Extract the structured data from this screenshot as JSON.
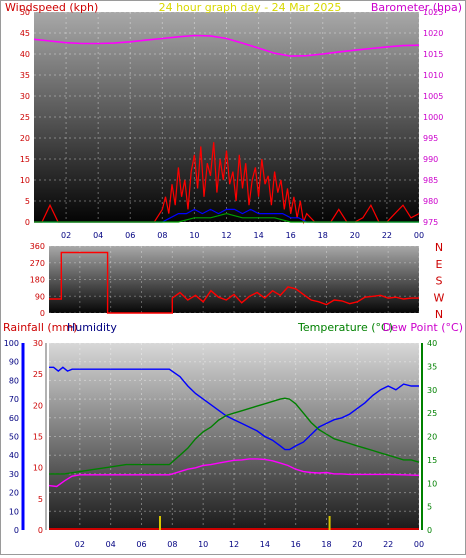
{
  "chart_data": [
    {
      "type": "line",
      "title": "24 hour graph day - 24 Mar 2025",
      "left_axis_label": "Windspeed (kph)",
      "right_axis_label": "Barometer (hpa)",
      "x_ticks": [
        "02",
        "04",
        "06",
        "08",
        "10",
        "12",
        "14",
        "16",
        "18",
        "20",
        "22",
        "00"
      ],
      "y_left_ticks": [
        "0",
        "5",
        "10",
        "15",
        "20",
        "25",
        "30",
        "35",
        "40",
        "45",
        "50"
      ],
      "y_left_range": [
        0,
        50
      ],
      "y_right_ticks": [
        "975",
        "980",
        "985",
        "990",
        "995",
        "1000",
        "1005",
        "1010",
        "1015",
        "1020",
        "1025"
      ],
      "y_right_range": [
        975,
        1025
      ],
      "series": [
        {
          "name": "Barometer",
          "color": "#ff00ff",
          "axis": "right",
          "x": [
            0,
            1,
            2,
            3,
            4,
            5,
            6,
            7,
            8,
            9,
            10,
            11,
            12,
            13,
            14,
            15,
            16,
            17,
            18,
            19,
            20,
            21,
            22,
            23,
            24
          ],
          "values": [
            1018.5,
            1018.1,
            1017.7,
            1017.5,
            1017.5,
            1017.6,
            1017.9,
            1018.3,
            1018.7,
            1019.1,
            1019.4,
            1019.3,
            1018.7,
            1017.6,
            1016.4,
            1015.2,
            1014.5,
            1014.6,
            1015.0,
            1015.5,
            1015.9,
            1016.3,
            1016.7,
            1017.0,
            1017.1
          ]
        },
        {
          "name": "Wind gust",
          "color": "#ff0000",
          "axis": "left",
          "x": [
            0,
            0.5,
            1,
            1.5,
            2,
            2.5,
            3,
            3.5,
            4,
            4.5,
            5,
            5.5,
            6,
            6.5,
            7,
            7.5,
            8,
            8.2,
            8.4,
            8.6,
            8.8,
            9,
            9.2,
            9.4,
            9.6,
            9.8,
            10,
            10.2,
            10.4,
            10.6,
            10.8,
            11,
            11.2,
            11.4,
            11.6,
            11.8,
            12,
            12.2,
            12.4,
            12.6,
            12.8,
            13,
            13.2,
            13.4,
            13.6,
            13.8,
            14,
            14.2,
            14.4,
            14.6,
            14.8,
            15,
            15.2,
            15.4,
            15.6,
            15.8,
            16,
            16.2,
            16.4,
            16.6,
            16.8,
            17,
            17.5,
            18,
            18.5,
            19,
            19.5,
            20,
            20.5,
            21,
            21.5,
            22,
            22.5,
            23,
            23.5,
            24
          ],
          "values": [
            0,
            0,
            4,
            0,
            0,
            0,
            0,
            0,
            0,
            0,
            0,
            0,
            0,
            0,
            0,
            0,
            3,
            6,
            2,
            9,
            4,
            13,
            6,
            10,
            3,
            12,
            16,
            8,
            18,
            6,
            14,
            11,
            19,
            7,
            15,
            10,
            17,
            9,
            12,
            5,
            16,
            8,
            14,
            4,
            10,
            13,
            6,
            15,
            9,
            11,
            4,
            12,
            7,
            10,
            3,
            8,
            2,
            6,
            1,
            5,
            0,
            2,
            0,
            0,
            0,
            3,
            0,
            0,
            1,
            4,
            0,
            0,
            2,
            4,
            1,
            2
          ]
        },
        {
          "name": "Average wind speed",
          "color": "#0000ff",
          "axis": "left",
          "x": [
            0,
            8,
            8.5,
            9,
            9.5,
            10,
            10.5,
            11,
            11.5,
            12,
            12.5,
            13,
            13.5,
            14,
            14.5,
            15,
            15.5,
            16,
            16.5,
            17,
            24
          ],
          "values": [
            0,
            0,
            1,
            2,
            2,
            3,
            2,
            3,
            2,
            3,
            3,
            2,
            3,
            2,
            2,
            2,
            2,
            1,
            1,
            0,
            0
          ]
        },
        {
          "name": "Wind lull",
          "color": "#00a000",
          "axis": "left",
          "x": [
            0,
            9,
            10,
            11,
            12,
            13,
            14,
            15,
            16,
            17,
            24
          ],
          "values": [
            0,
            0,
            1,
            1,
            2,
            1,
            1,
            1,
            0,
            0,
            0
          ]
        }
      ]
    },
    {
      "type": "scatter",
      "right_axis_label": "N W S E N",
      "y_left_ticks": [
        "0",
        "90",
        "180",
        "270",
        "360"
      ],
      "y_left_range": [
        0,
        360
      ],
      "compass_labels": [
        "N",
        "W",
        "S",
        "E",
        "N"
      ],
      "x_ticks": [],
      "series": [
        {
          "name": "Wind direction",
          "color": "#ff0000",
          "x": [
            0,
            0.8,
            0.8,
            3.8,
            3.8,
            8,
            8,
            8.5,
            9,
            9.5,
            10,
            10.5,
            11,
            11.5,
            12,
            12.5,
            13,
            13.5,
            14,
            14.5,
            15,
            15.5,
            16,
            16.5,
            17,
            17.5,
            18,
            18.5,
            19,
            19.5,
            20,
            20.5,
            21,
            21.5,
            22,
            22.5,
            23,
            23.5,
            24
          ],
          "values": [
            75,
            75,
            325,
            325,
            0,
            0,
            80,
            110,
            70,
            95,
            60,
            120,
            85,
            70,
            100,
            55,
            90,
            110,
            80,
            120,
            95,
            140,
            130,
            100,
            70,
            60,
            45,
            70,
            65,
            50,
            60,
            85,
            90,
            95,
            80,
            85,
            75,
            80,
            80
          ]
        }
      ]
    },
    {
      "type": "line",
      "left_axis_label": "Rainfall (mm)",
      "left_axis_label_2": "Humidity",
      "right_axis_label": "Temperature (°C)",
      "right_axis_label_2": "Dew Point (°C)",
      "x_ticks": [
        "02",
        "04",
        "06",
        "08",
        "10",
        "12",
        "14",
        "16",
        "18",
        "20",
        "22",
        "00"
      ],
      "humidity_ticks": [
        "0",
        "10",
        "20",
        "30",
        "40",
        "50",
        "60",
        "70",
        "80",
        "90",
        "100"
      ],
      "rain_ticks": [
        "0",
        "5",
        "10",
        "15",
        "20",
        "25",
        "30"
      ],
      "y_right_ticks": [
        "0",
        "5",
        "10",
        "15",
        "20",
        "25",
        "30",
        "35",
        "40"
      ],
      "y_range_percent": [
        0,
        100
      ],
      "y_range_temp": [
        0,
        40
      ],
      "series": [
        {
          "name": "Humidity",
          "color": "#0000ff",
          "axis": "humidity",
          "x": [
            0,
            0.3,
            0.6,
            0.9,
            1.2,
            1.5,
            2,
            4,
            6,
            7.8,
            8.5,
            9,
            9.5,
            10,
            10.5,
            11,
            11.5,
            12,
            12.5,
            13,
            13.5,
            14,
            14.5,
            15,
            15.3,
            15.6,
            16,
            16.5,
            17,
            17.5,
            18,
            18.5,
            19,
            19.5,
            20,
            20.5,
            21,
            21.5,
            22,
            22.5,
            23,
            23.5,
            24
          ],
          "values": [
            87,
            87,
            85,
            87,
            85,
            86,
            86,
            86,
            86,
            86,
            82,
            77,
            73,
            70,
            67,
            64,
            61,
            59,
            57,
            55,
            53,
            50,
            48,
            45,
            43,
            43,
            45,
            47,
            51,
            55,
            57,
            59,
            60,
            62,
            65,
            68,
            72,
            75,
            77,
            75,
            78,
            77,
            77
          ]
        },
        {
          "name": "Temperature",
          "color": "#008000",
          "axis": "temp",
          "x": [
            0,
            1,
            2,
            3,
            4,
            5,
            6,
            7,
            7.8,
            8.5,
            9,
            9.5,
            10,
            10.5,
            11,
            11.5,
            12,
            12.5,
            13,
            13.5,
            14,
            14.5,
            15,
            15.3,
            15.6,
            16,
            16.5,
            17,
            17.5,
            18,
            18.5,
            19,
            19.5,
            20,
            20.5,
            21,
            21.5,
            22,
            22.5,
            23,
            23.5,
            24
          ],
          "values": [
            12,
            12,
            12.5,
            13,
            13.5,
            14,
            14,
            14,
            14,
            16,
            17.5,
            19.5,
            21,
            22,
            23.5,
            24.5,
            25,
            25.5,
            26,
            26.5,
            27,
            27.5,
            28,
            28.2,
            28,
            27,
            25,
            23,
            21.5,
            20.5,
            19.5,
            19,
            18.5,
            18,
            17.5,
            17,
            16.5,
            16,
            15.5,
            15,
            15,
            14.5
          ]
        },
        {
          "name": "Dew Point",
          "color": "#ff00ff",
          "axis": "temp",
          "x": [
            0,
            0.5,
            1,
            1.5,
            2,
            4,
            6,
            7.8,
            8.5,
            9,
            9.5,
            10,
            10.5,
            11,
            11.5,
            12,
            12.5,
            13,
            13.5,
            14,
            14.5,
            15,
            15.5,
            16,
            16.5,
            17,
            17.5,
            18,
            18.5,
            19,
            19.5,
            20,
            21,
            22,
            23,
            24
          ],
          "values": [
            9.5,
            9.3,
            10.5,
            11.5,
            11.8,
            11.8,
            11.8,
            11.8,
            12.5,
            13,
            13.3,
            13.8,
            14,
            14.3,
            14.6,
            14.9,
            15,
            15.2,
            15.2,
            15.1,
            14.8,
            14.3,
            13.8,
            13,
            12.5,
            12.3,
            12.2,
            12.3,
            12,
            12,
            11.9,
            11.9,
            11.9,
            11.9,
            11.8,
            11.7
          ]
        },
        {
          "name": "Rainfall",
          "color": "#d8c800",
          "axis": "rain",
          "x": [
            7.2,
            18.2
          ],
          "values": [
            1.5,
            1.5
          ]
        }
      ]
    }
  ]
}
